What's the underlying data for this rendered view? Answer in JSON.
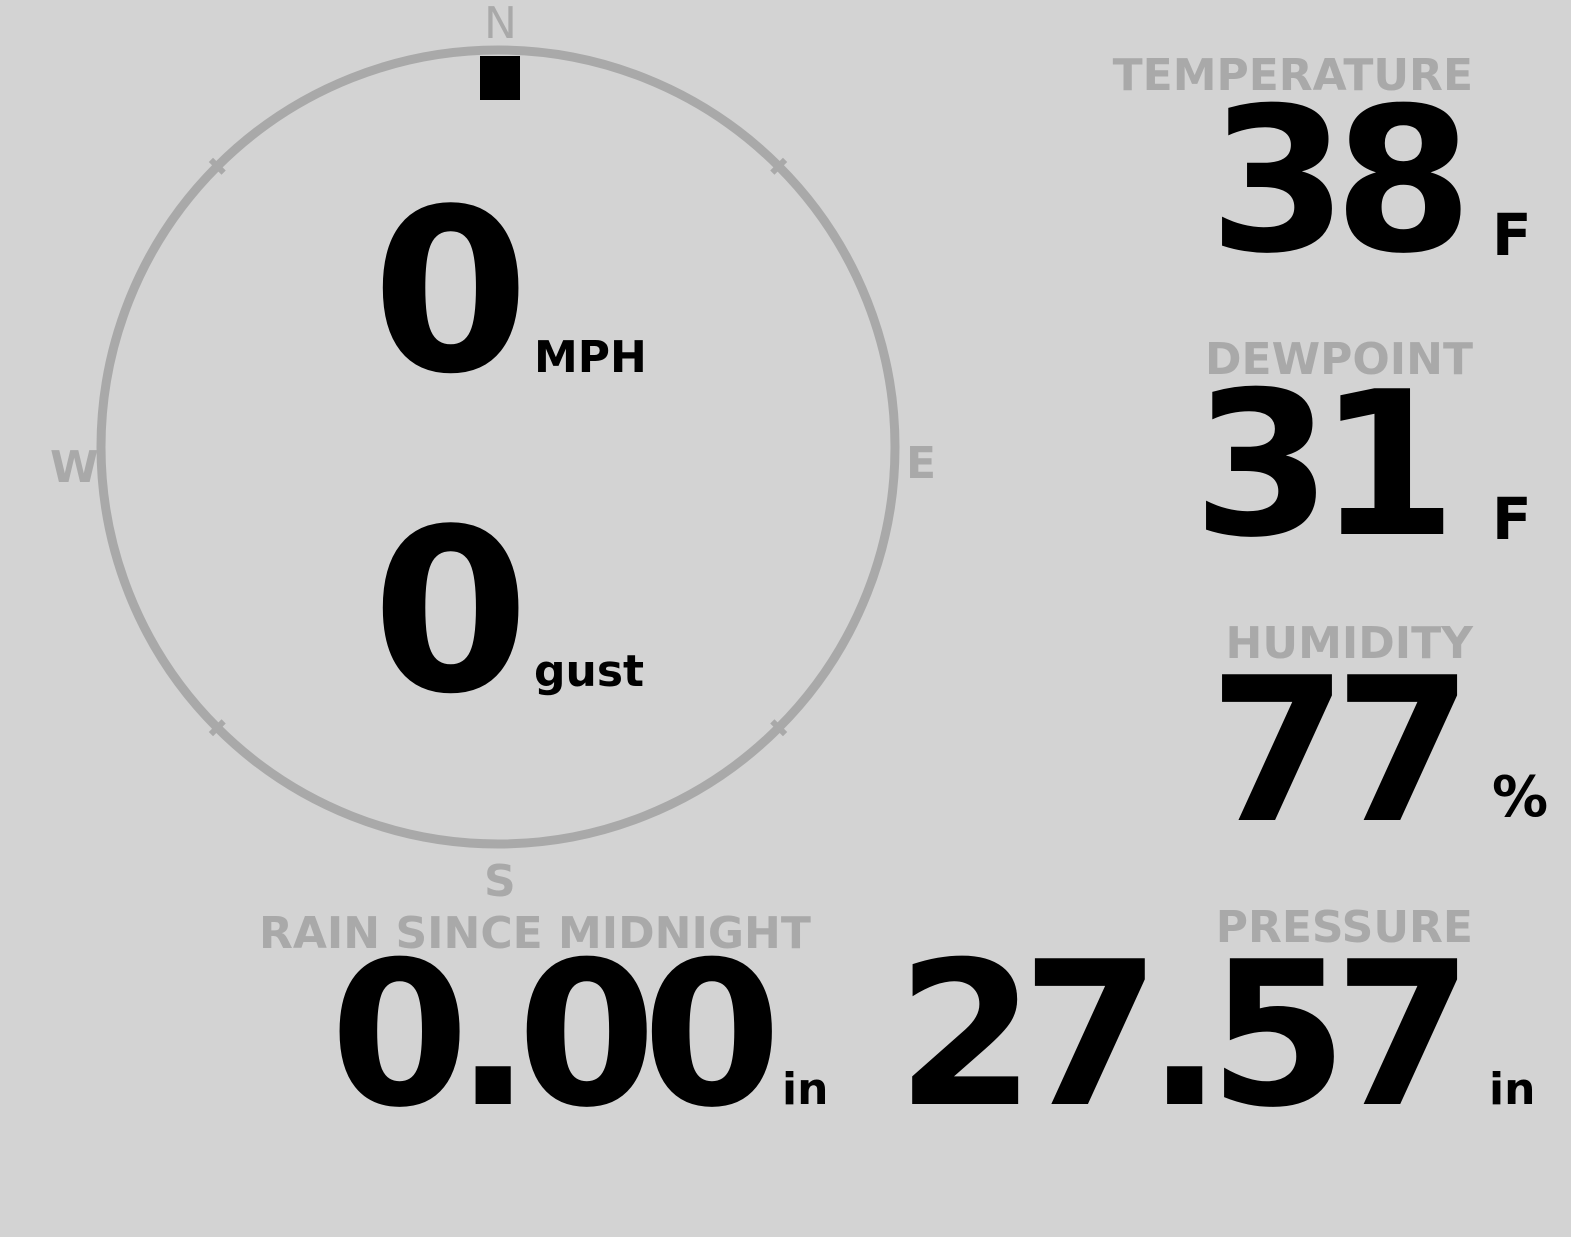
{
  "colors": {
    "background": "#d3d3d3",
    "label": "#a9a9a9",
    "value": "#000000"
  },
  "wind": {
    "direction_deg": 0,
    "compass": {
      "n": "N",
      "e": "E",
      "s": "S",
      "w": "W"
    },
    "speed": "0",
    "speed_unit": "MPH",
    "gust": "0",
    "gust_unit": "gust"
  },
  "temperature": {
    "label": "TEMPERATURE",
    "value": "38",
    "unit": "F"
  },
  "dewpoint": {
    "label": "DEWPOINT",
    "value": "31",
    "unit": "F"
  },
  "humidity": {
    "label": "HUMIDITY",
    "value": "77",
    "unit": "%"
  },
  "pressure": {
    "label": "PRESSURE",
    "value": "27.57",
    "unit": "in"
  },
  "rain": {
    "label": "RAIN SINCE MIDNIGHT",
    "value": "0.00",
    "unit": "in"
  }
}
